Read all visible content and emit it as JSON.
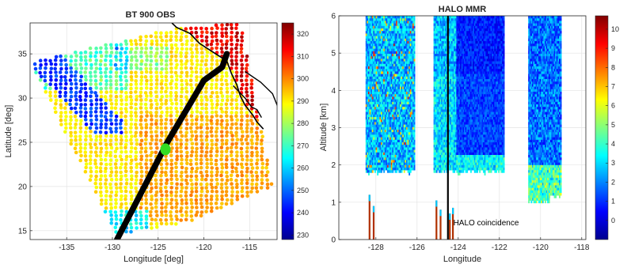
{
  "chart_data": [
    {
      "type": "scatter",
      "title": "BT 900 OBS",
      "xlabel": "Longitude [deg]",
      "ylabel": "Latitude [deg]",
      "xlim": [
        -139,
        -112
      ],
      "ylim": [
        14,
        38.5
      ],
      "xticks": [
        -135,
        -130,
        -125,
        -120,
        -115
      ],
      "xtick_labels": [
        "-135",
        "-130",
        "-125",
        "-120",
        "-115"
      ],
      "yticks": [
        15,
        20,
        25,
        30,
        35
      ],
      "ytick_labels": [
        "15",
        "20",
        "25",
        "30",
        "35"
      ],
      "grid": true,
      "colorbar": {
        "min": 228,
        "max": 325,
        "colormap": "jet",
        "ticks": [
          230,
          240,
          250,
          260,
          270,
          280,
          290,
          300,
          310,
          320
        ],
        "tick_labels": [
          "230",
          "240",
          "250",
          "260",
          "270",
          "280",
          "290",
          "300",
          "310",
          "320"
        ]
      },
      "swath_corners": [
        [
          -129.5,
          14.5
        ],
        [
          -121.5,
          16
        ],
        [
          -112.5,
          20
        ],
        [
          -116,
          38.5
        ],
        [
          -123,
          38
        ],
        [
          -139,
          34
        ]
      ],
      "flight_track": [
        [
          -129.5,
          14
        ],
        [
          -127.5,
          18
        ],
        [
          -125.5,
          22
        ],
        [
          -124,
          25
        ],
        [
          -122,
          28.5
        ],
        [
          -120,
          32
        ],
        [
          -118,
          33.5
        ],
        [
          -117.5,
          35
        ]
      ],
      "coincidence_point": [
        -124.2,
        24.2
      ],
      "series": [
        {
          "type": "line",
          "values": [
            [
              -129.5,
              14
            ],
            [
              -127.5,
              18
            ],
            [
              -125.5,
              22
            ],
            [
              -124,
              25
            ],
            [
              -122,
              28.5
            ],
            [
              -120,
              32
            ],
            [
              -118,
              33.5
            ],
            [
              -117.5,
              35
            ]
          ],
          "color": "#000000"
        },
        {
          "type": "point",
          "values": [
            [
              -124.2,
              24.2
            ]
          ],
          "color": "#33dd22"
        }
      ]
    },
    {
      "type": "heatmap",
      "title": "HALO MMR",
      "xlabel": "Longitude",
      "ylabel": "Altitude [km]",
      "xlim": [
        -129.8,
        -117.8
      ],
      "ylim": [
        0,
        6
      ],
      "xticks": [
        -128,
        -126,
        -124,
        -122,
        -120,
        -118
      ],
      "xtick_labels": [
        "-128",
        "-126",
        "-124",
        "-122",
        "-120",
        "-118"
      ],
      "yticks": [
        0,
        1,
        2,
        3,
        4,
        5,
        6
      ],
      "ytick_labels": [
        "0",
        "1",
        "2",
        "3",
        "4",
        "5",
        "6"
      ],
      "grid": true,
      "colorbar": {
        "min": -1,
        "max": 10.7,
        "colormap": "jet",
        "ticks": [
          0,
          1,
          2,
          3,
          4,
          5,
          6,
          7,
          8,
          9,
          10
        ],
        "tick_labels": [
          "0",
          "1",
          "2",
          "3",
          "4",
          "5",
          "6",
          "7",
          "8",
          "9",
          "10"
        ]
      },
      "data_segments": [
        {
          "lon_range": [
            -128.5,
            -126.1
          ],
          "surface_km": 1.85
        },
        {
          "lon_range": [
            -125.2,
            -121.8
          ],
          "surface_km": 1.85
        },
        {
          "lon_range": [
            -120.6,
            -119.6
          ],
          "surface_km": 1.05
        },
        {
          "lon_range": [
            -119.6,
            -119.0
          ],
          "surface_km": 1.2
        }
      ],
      "coincidence_longitude": -124.5,
      "annotations": [
        {
          "text": "HALO coincidence",
          "x": -123.5,
          "y": 0.45
        }
      ]
    }
  ]
}
